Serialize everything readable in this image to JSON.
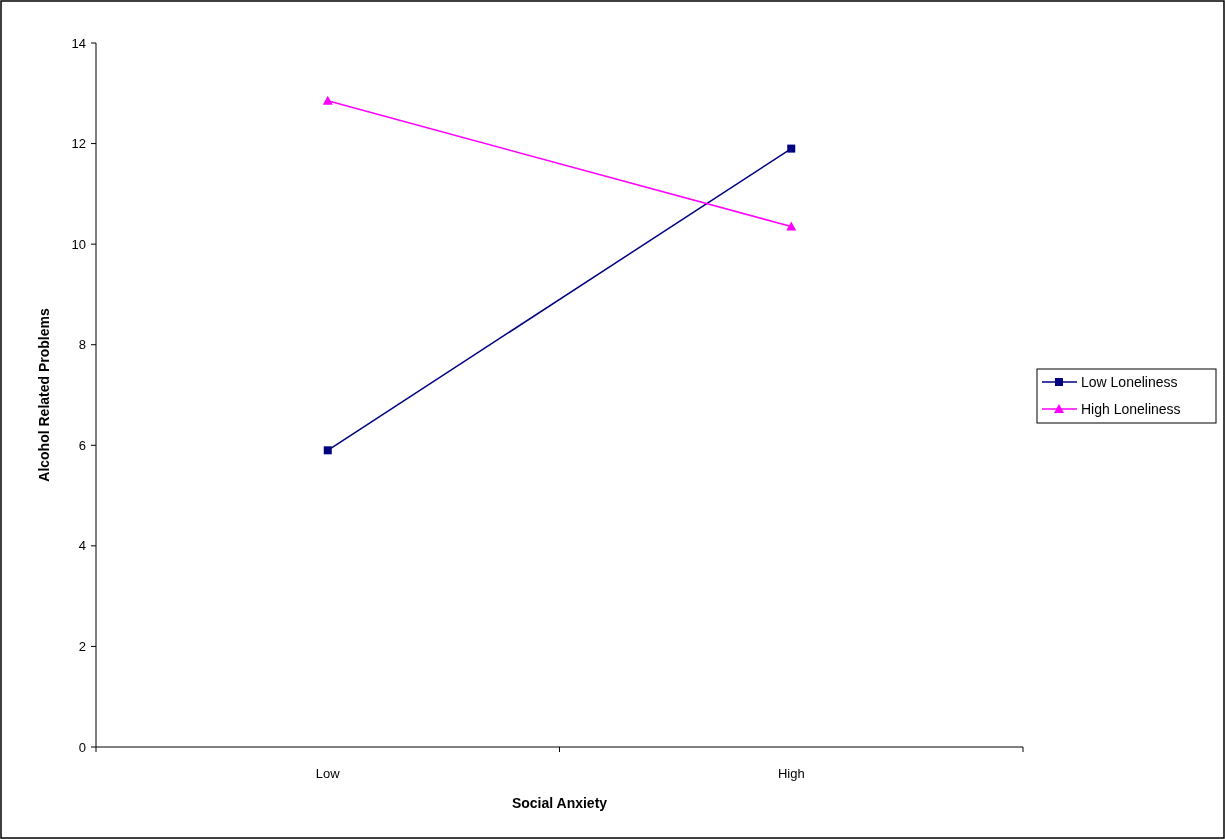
{
  "chart_data": {
    "type": "line",
    "xlabel": "Social Anxiety",
    "ylabel": "Alcohol Related Problems",
    "categories": [
      "Low",
      "High"
    ],
    "series": [
      {
        "name": "Low Loneliness",
        "color": "#000080",
        "marker": "square",
        "values": [
          5.9,
          11.9
        ]
      },
      {
        "name": "High Loneliness",
        "color": "#ff00ff",
        "marker": "triangle",
        "values": [
          12.85,
          10.35
        ]
      }
    ],
    "ylim": [
      0,
      14
    ],
    "yticks": [
      0,
      2,
      4,
      6,
      8,
      10,
      12,
      14
    ],
    "grid": false,
    "legend": "right"
  }
}
